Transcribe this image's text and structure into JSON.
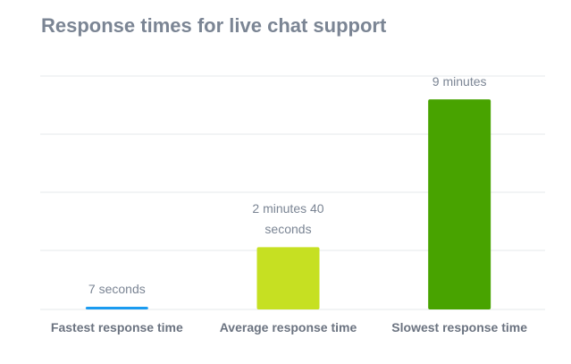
{
  "chart_data": {
    "type": "bar",
    "title": "Response times for live chat support",
    "categories": [
      "Fastest response time",
      "Average response time",
      "Slowest response time"
    ],
    "values": [
      7,
      160,
      540
    ],
    "value_labels": [
      "7 seconds",
      "2 minutes 40 seconds",
      "9 minutes"
    ],
    "colors": [
      "#1a9bf0",
      "#c6e022",
      "#48a300"
    ],
    "ylim": [
      0,
      600
    ]
  }
}
